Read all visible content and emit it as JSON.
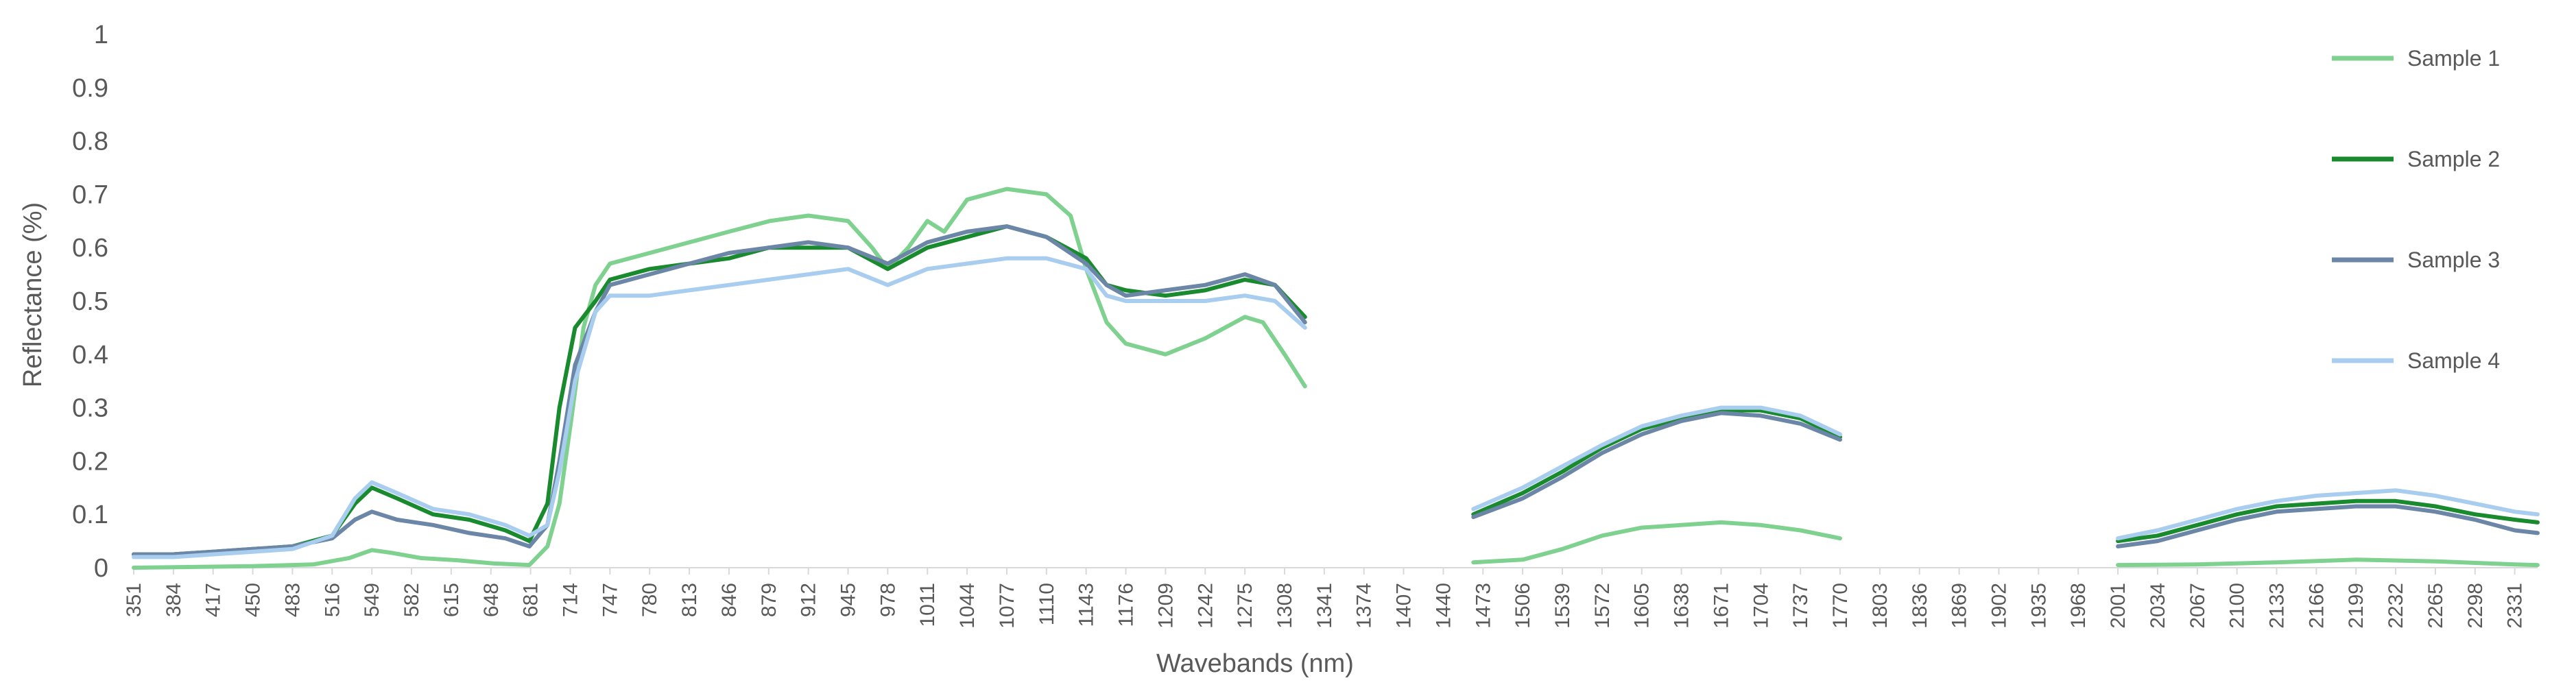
{
  "chart_data": {
    "type": "line",
    "xlabel": "Wavebands (nm)",
    "ylabel": "Reflectance (%)",
    "ylim": [
      0,
      1
    ],
    "yticks": [
      "0",
      "0.1",
      "0.2",
      "0.3",
      "0.4",
      "0.5",
      "0.6",
      "0.7",
      "0.8",
      "0.9",
      "1"
    ],
    "xlim": [
      351,
      2350
    ],
    "xticks": [
      351,
      384,
      417,
      450,
      483,
      516,
      549,
      582,
      615,
      648,
      681,
      714,
      747,
      780,
      813,
      846,
      879,
      912,
      945,
      978,
      1011,
      1044,
      1077,
      1110,
      1143,
      1176,
      1209,
      1242,
      1275,
      1308,
      1341,
      1374,
      1407,
      1440,
      1473,
      1506,
      1539,
      1572,
      1605,
      1638,
      1671,
      1704,
      1737,
      1770,
      1803,
      1836,
      1869,
      1902,
      1935,
      1968,
      2001,
      2034,
      2067,
      2100,
      2133,
      2166,
      2199,
      2232,
      2265,
      2298,
      2331
    ],
    "grid": false,
    "legend_position": "right",
    "series": [
      {
        "name": "Sample 1",
        "color": "#7fd18f",
        "segments": [
          [
            [
              351,
              0.0
            ],
            [
              450,
              0.003
            ],
            [
              500,
              0.006
            ],
            [
              530,
              0.018
            ],
            [
              549,
              0.033
            ],
            [
              565,
              0.028
            ],
            [
              590,
              0.018
            ],
            [
              620,
              0.014
            ],
            [
              650,
              0.008
            ],
            [
              680,
              0.005
            ],
            [
              695,
              0.04
            ],
            [
              705,
              0.12
            ],
            [
              715,
              0.28
            ],
            [
              725,
              0.45
            ],
            [
              735,
              0.53
            ],
            [
              747,
              0.57
            ],
            [
              780,
              0.59
            ],
            [
              813,
              0.61
            ],
            [
              846,
              0.63
            ],
            [
              880,
              0.65
            ],
            [
              912,
              0.66
            ],
            [
              945,
              0.65
            ],
            [
              965,
              0.6
            ],
            [
              978,
              0.56
            ],
            [
              995,
              0.6
            ],
            [
              1011,
              0.65
            ],
            [
              1025,
              0.63
            ],
            [
              1044,
              0.69
            ],
            [
              1077,
              0.71
            ],
            [
              1110,
              0.7
            ],
            [
              1130,
              0.66
            ],
            [
              1143,
              0.56
            ],
            [
              1160,
              0.46
            ],
            [
              1176,
              0.42
            ],
            [
              1209,
              0.4
            ],
            [
              1242,
              0.43
            ],
            [
              1275,
              0.47
            ],
            [
              1290,
              0.46
            ],
            [
              1308,
              0.4
            ],
            [
              1325,
              0.34
            ]
          ],
          [
            [
              1465,
              0.01
            ],
            [
              1506,
              0.015
            ],
            [
              1539,
              0.035
            ],
            [
              1572,
              0.06
            ],
            [
              1605,
              0.075
            ],
            [
              1638,
              0.08
            ],
            [
              1671,
              0.085
            ],
            [
              1704,
              0.08
            ],
            [
              1737,
              0.07
            ],
            [
              1770,
              0.055
            ]
          ],
          [
            [
              2001,
              0.005
            ],
            [
              2067,
              0.006
            ],
            [
              2133,
              0.01
            ],
            [
              2199,
              0.015
            ],
            [
              2265,
              0.012
            ],
            [
              2331,
              0.006
            ],
            [
              2350,
              0.005
            ]
          ]
        ]
      },
      {
        "name": "Sample 2",
        "color": "#1a8a2e",
        "segments": [
          [
            [
              351,
              0.025
            ],
            [
              384,
              0.025
            ],
            [
              417,
              0.03
            ],
            [
              450,
              0.035
            ],
            [
              483,
              0.04
            ],
            [
              516,
              0.06
            ],
            [
              535,
              0.12
            ],
            [
              549,
              0.15
            ],
            [
              570,
              0.13
            ],
            [
              600,
              0.1
            ],
            [
              630,
              0.09
            ],
            [
              660,
              0.07
            ],
            [
              680,
              0.05
            ],
            [
              695,
              0.12
            ],
            [
              705,
              0.3
            ],
            [
              718,
              0.45
            ],
            [
              735,
              0.5
            ],
            [
              747,
              0.54
            ],
            [
              780,
              0.56
            ],
            [
              813,
              0.57
            ],
            [
              846,
              0.58
            ],
            [
              879,
              0.6
            ],
            [
              912,
              0.6
            ],
            [
              945,
              0.6
            ],
            [
              978,
              0.56
            ],
            [
              1011,
              0.6
            ],
            [
              1044,
              0.62
            ],
            [
              1077,
              0.64
            ],
            [
              1110,
              0.62
            ],
            [
              1143,
              0.58
            ],
            [
              1160,
              0.53
            ],
            [
              1176,
              0.52
            ],
            [
              1209,
              0.51
            ],
            [
              1242,
              0.52
            ],
            [
              1275,
              0.54
            ],
            [
              1300,
              0.53
            ],
            [
              1325,
              0.47
            ]
          ],
          [
            [
              1465,
              0.1
            ],
            [
              1506,
              0.14
            ],
            [
              1539,
              0.18
            ],
            [
              1572,
              0.225
            ],
            [
              1605,
              0.26
            ],
            [
              1638,
              0.28
            ],
            [
              1671,
              0.295
            ],
            [
              1704,
              0.295
            ],
            [
              1737,
              0.28
            ],
            [
              1770,
              0.245
            ]
          ],
          [
            [
              2001,
              0.05
            ],
            [
              2034,
              0.06
            ],
            [
              2067,
              0.08
            ],
            [
              2100,
              0.1
            ],
            [
              2133,
              0.115
            ],
            [
              2166,
              0.12
            ],
            [
              2199,
              0.125
            ],
            [
              2232,
              0.125
            ],
            [
              2265,
              0.115
            ],
            [
              2298,
              0.1
            ],
            [
              2331,
              0.09
            ],
            [
              2350,
              0.085
            ]
          ]
        ]
      },
      {
        "name": "Sample 3",
        "color": "#6b86a6",
        "segments": [
          [
            [
              351,
              0.025
            ],
            [
              384,
              0.025
            ],
            [
              417,
              0.03
            ],
            [
              450,
              0.035
            ],
            [
              483,
              0.04
            ],
            [
              516,
              0.055
            ],
            [
              535,
              0.09
            ],
            [
              549,
              0.105
            ],
            [
              570,
              0.09
            ],
            [
              600,
              0.08
            ],
            [
              630,
              0.065
            ],
            [
              660,
              0.055
            ],
            [
              680,
              0.04
            ],
            [
              695,
              0.08
            ],
            [
              705,
              0.2
            ],
            [
              718,
              0.38
            ],
            [
              735,
              0.48
            ],
            [
              747,
              0.53
            ],
            [
              780,
              0.55
            ],
            [
              813,
              0.57
            ],
            [
              846,
              0.59
            ],
            [
              879,
              0.6
            ],
            [
              912,
              0.61
            ],
            [
              945,
              0.6
            ],
            [
              978,
              0.57
            ],
            [
              1011,
              0.61
            ],
            [
              1044,
              0.63
            ],
            [
              1077,
              0.64
            ],
            [
              1110,
              0.62
            ],
            [
              1143,
              0.57
            ],
            [
              1160,
              0.53
            ],
            [
              1176,
              0.51
            ],
            [
              1209,
              0.52
            ],
            [
              1242,
              0.53
            ],
            [
              1275,
              0.55
            ],
            [
              1300,
              0.53
            ],
            [
              1325,
              0.46
            ]
          ],
          [
            [
              1465,
              0.095
            ],
            [
              1506,
              0.13
            ],
            [
              1539,
              0.17
            ],
            [
              1572,
              0.215
            ],
            [
              1605,
              0.25
            ],
            [
              1638,
              0.275
            ],
            [
              1671,
              0.29
            ],
            [
              1704,
              0.285
            ],
            [
              1737,
              0.27
            ],
            [
              1770,
              0.24
            ]
          ],
          [
            [
              2001,
              0.04
            ],
            [
              2034,
              0.05
            ],
            [
              2067,
              0.07
            ],
            [
              2100,
              0.09
            ],
            [
              2133,
              0.105
            ],
            [
              2166,
              0.11
            ],
            [
              2199,
              0.115
            ],
            [
              2232,
              0.115
            ],
            [
              2265,
              0.105
            ],
            [
              2298,
              0.09
            ],
            [
              2331,
              0.07
            ],
            [
              2350,
              0.065
            ]
          ]
        ]
      },
      {
        "name": "Sample 4",
        "color": "#a9cdef",
        "segments": [
          [
            [
              351,
              0.02
            ],
            [
              384,
              0.02
            ],
            [
              417,
              0.025
            ],
            [
              450,
              0.03
            ],
            [
              483,
              0.035
            ],
            [
              516,
              0.06
            ],
            [
              535,
              0.13
            ],
            [
              549,
              0.16
            ],
            [
              570,
              0.14
            ],
            [
              600,
              0.11
            ],
            [
              630,
              0.1
            ],
            [
              660,
              0.08
            ],
            [
              680,
              0.06
            ],
            [
              695,
              0.08
            ],
            [
              705,
              0.18
            ],
            [
              718,
              0.35
            ],
            [
              735,
              0.48
            ],
            [
              747,
              0.51
            ],
            [
              780,
              0.51
            ],
            [
              813,
              0.52
            ],
            [
              846,
              0.53
            ],
            [
              879,
              0.54
            ],
            [
              912,
              0.55
            ],
            [
              945,
              0.56
            ],
            [
              978,
              0.53
            ],
            [
              1011,
              0.56
            ],
            [
              1044,
              0.57
            ],
            [
              1077,
              0.58
            ],
            [
              1110,
              0.58
            ],
            [
              1143,
              0.56
            ],
            [
              1160,
              0.51
            ],
            [
              1176,
              0.5
            ],
            [
              1209,
              0.5
            ],
            [
              1242,
              0.5
            ],
            [
              1275,
              0.51
            ],
            [
              1300,
              0.5
            ],
            [
              1325,
              0.45
            ]
          ],
          [
            [
              1465,
              0.11
            ],
            [
              1506,
              0.15
            ],
            [
              1539,
              0.19
            ],
            [
              1572,
              0.23
            ],
            [
              1605,
              0.265
            ],
            [
              1638,
              0.285
            ],
            [
              1671,
              0.3
            ],
            [
              1704,
              0.3
            ],
            [
              1737,
              0.285
            ],
            [
              1770,
              0.25
            ]
          ],
          [
            [
              2001,
              0.055
            ],
            [
              2034,
              0.07
            ],
            [
              2067,
              0.09
            ],
            [
              2100,
              0.11
            ],
            [
              2133,
              0.125
            ],
            [
              2166,
              0.135
            ],
            [
              2199,
              0.14
            ],
            [
              2232,
              0.145
            ],
            [
              2265,
              0.135
            ],
            [
              2298,
              0.12
            ],
            [
              2331,
              0.105
            ],
            [
              2350,
              0.1
            ]
          ]
        ]
      }
    ]
  }
}
